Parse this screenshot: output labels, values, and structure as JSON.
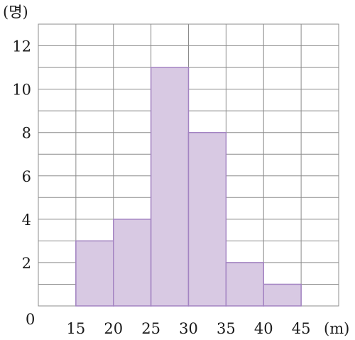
{
  "chart_data": {
    "type": "bar",
    "title": "",
    "xlabel": "",
    "ylabel": "",
    "y_unit": "(명)",
    "x_unit": "(m)",
    "origin_label": "0",
    "bins": [
      [
        15,
        20
      ],
      [
        20,
        25
      ],
      [
        25,
        30
      ],
      [
        30,
        35
      ],
      [
        35,
        40
      ],
      [
        40,
        45
      ]
    ],
    "values": [
      3,
      4,
      11,
      8,
      2,
      1
    ],
    "x_ticks": [
      "15",
      "20",
      "25",
      "30",
      "35",
      "40",
      "45"
    ],
    "y_ticks": [
      "2",
      "4",
      "6",
      "8",
      "10",
      "12"
    ],
    "xlim": [
      10,
      50
    ],
    "ylim": [
      0,
      13
    ],
    "grid": true,
    "legend": "none",
    "colors": {
      "bar_fill": "#d8c9e3",
      "bar_stroke": "#a383c2",
      "grid": "#8c8c8c"
    }
  }
}
